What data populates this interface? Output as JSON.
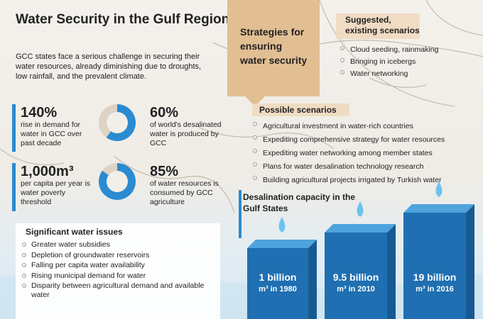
{
  "title": "Water Security in the Gulf Region",
  "intro": "GCC states face a serious challenge in securing their water resources, already diminishing due to droughts, low rainfall, and the prevalent climate.",
  "stats": [
    {
      "value": "140%",
      "text": "rise in demand for water in GCC over past decade"
    },
    {
      "value": "60%",
      "text": "of world's desalinated water is produced by GCC",
      "fraction": 0.6
    },
    {
      "value": "1,000m³",
      "text": "per capita per year is water poverty threshold"
    },
    {
      "value": "85%",
      "text": "of water resources is consumed by GCC agriculture",
      "fraction": 0.85
    }
  ],
  "issues": {
    "heading": "Significant water issues",
    "items": [
      "Greater water subsidies",
      "Depletion of groundwater reservoirs",
      "Falling per capita water availability",
      "Rising municipal demand for water",
      "Disparity between agricultural demand and available water"
    ]
  },
  "strategies": {
    "heading": "Strategies for ensuring water security",
    "suggested_title": "Suggested, existing scenarios",
    "suggested": [
      "Cloud seeding, rainmaking",
      "Bringing in icebergs",
      "Water networking"
    ],
    "possible_title": "Possible scenarios",
    "possible": [
      "Agricultural investment in water-rich countries",
      "Expediting comprehensive strategy for water resources",
      "Expediting water networking among member states",
      "Plans for water desalination technology research",
      "Building agricultural projects irrigated by Turkish water"
    ]
  },
  "desalination": {
    "heading": "Desalination capacity in the Gulf States",
    "bars": [
      {
        "amount": "1 billion",
        "unit": "m³ in 1980"
      },
      {
        "amount": "9.5 billion",
        "unit": "m³ in 2010"
      },
      {
        "amount": "19 billion",
        "unit": "m³ in 2016"
      }
    ]
  },
  "colors": {
    "accent": "#2a8bd0",
    "donut_track": "#ddd3c5",
    "strategy_box": "#e2be93",
    "tag": "#f0dcc3",
    "cube_front": "#1f6fb2",
    "cube_top": "#4ea3dd"
  }
}
